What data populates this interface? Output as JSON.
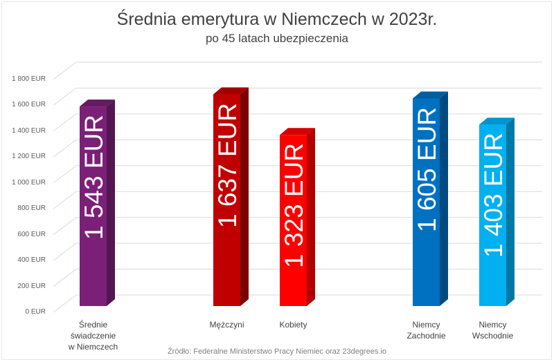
{
  "title": "Średnia emerytura w Niemczech w 2023r.",
  "subtitle": "po 45 latach ubezpieczenia",
  "source": "Źródło: Federalne Ministerstwo Pracy Niemiec oraz 23degrees.io",
  "yticks": [
    "0 EUR",
    "200 EUR",
    "400 EUR",
    "600 EUR",
    "800 EUR",
    "1 000 EUR",
    "1 200 EUR",
    "1 400 EUR",
    "1 600 EUR",
    "1 800 EUR"
  ],
  "bars": [
    {
      "category": "Średnie świadczenie w Niemczech",
      "label": "1 543 EUR",
      "value": 1543,
      "color": "#7b1f78",
      "side": "#541650",
      "top": "#651a61"
    },
    {
      "category": "Mężczyni",
      "label": "1 637 EUR",
      "value": 1637,
      "color": "#c00000",
      "side": "#7d0000",
      "top": "#a30000"
    },
    {
      "category": "Kobiety",
      "label": "1 323 EUR",
      "value": 1323,
      "color": "#ff0000",
      "side": "#b00000",
      "top": "#d60000"
    },
    {
      "category": "Niemcy Zachodnie",
      "label": "1 605 EUR",
      "value": 1605,
      "color": "#0070c0",
      "side": "#004a80",
      "top": "#005da0"
    },
    {
      "category": "Niemcy Wschodnie",
      "label": "1 403 EUR",
      "value": 1403,
      "color": "#00b0f0",
      "side": "#0078a6",
      "top": "#0095cc"
    }
  ],
  "category_lines": {
    "c0": [
      "Średnie",
      "świadczenie",
      "w Niemczech"
    ],
    "c1": [
      "Mężczyni"
    ],
    "c2": [
      "Kobiety"
    ],
    "c3": [
      "Niemcy",
      "Zachodnie"
    ],
    "c4": [
      "Niemcy",
      "Wschodnie"
    ]
  },
  "chart_data": {
    "type": "bar",
    "title": "Średnia emerytura w Niemczech w 2023r.",
    "subtitle": "po 45 latach ubezpieczenia",
    "categories": [
      "Średnie świadczenie w Niemczech",
      "Mężczyni",
      "Kobiety",
      "Niemcy Zachodnie",
      "Niemcy Wschodnie"
    ],
    "values": [
      1543,
      1637,
      1323,
      1605,
      1403
    ],
    "data_labels": [
      "1 543 EUR",
      "1 637 EUR",
      "1 323 EUR",
      "1 605 EUR",
      "1 403 EUR"
    ],
    "colors": [
      "#7b1f78",
      "#c00000",
      "#ff0000",
      "#0070c0",
      "#00b0f0"
    ],
    "xlabel": "",
    "ylabel": "",
    "ylim": [
      0,
      1800
    ],
    "ytick_step": 200,
    "grid": true,
    "legend": "none",
    "style": "3d-column",
    "source": "Źródło: Federalne Ministerstwo Pracy Niemiec oraz 23degrees.io"
  }
}
